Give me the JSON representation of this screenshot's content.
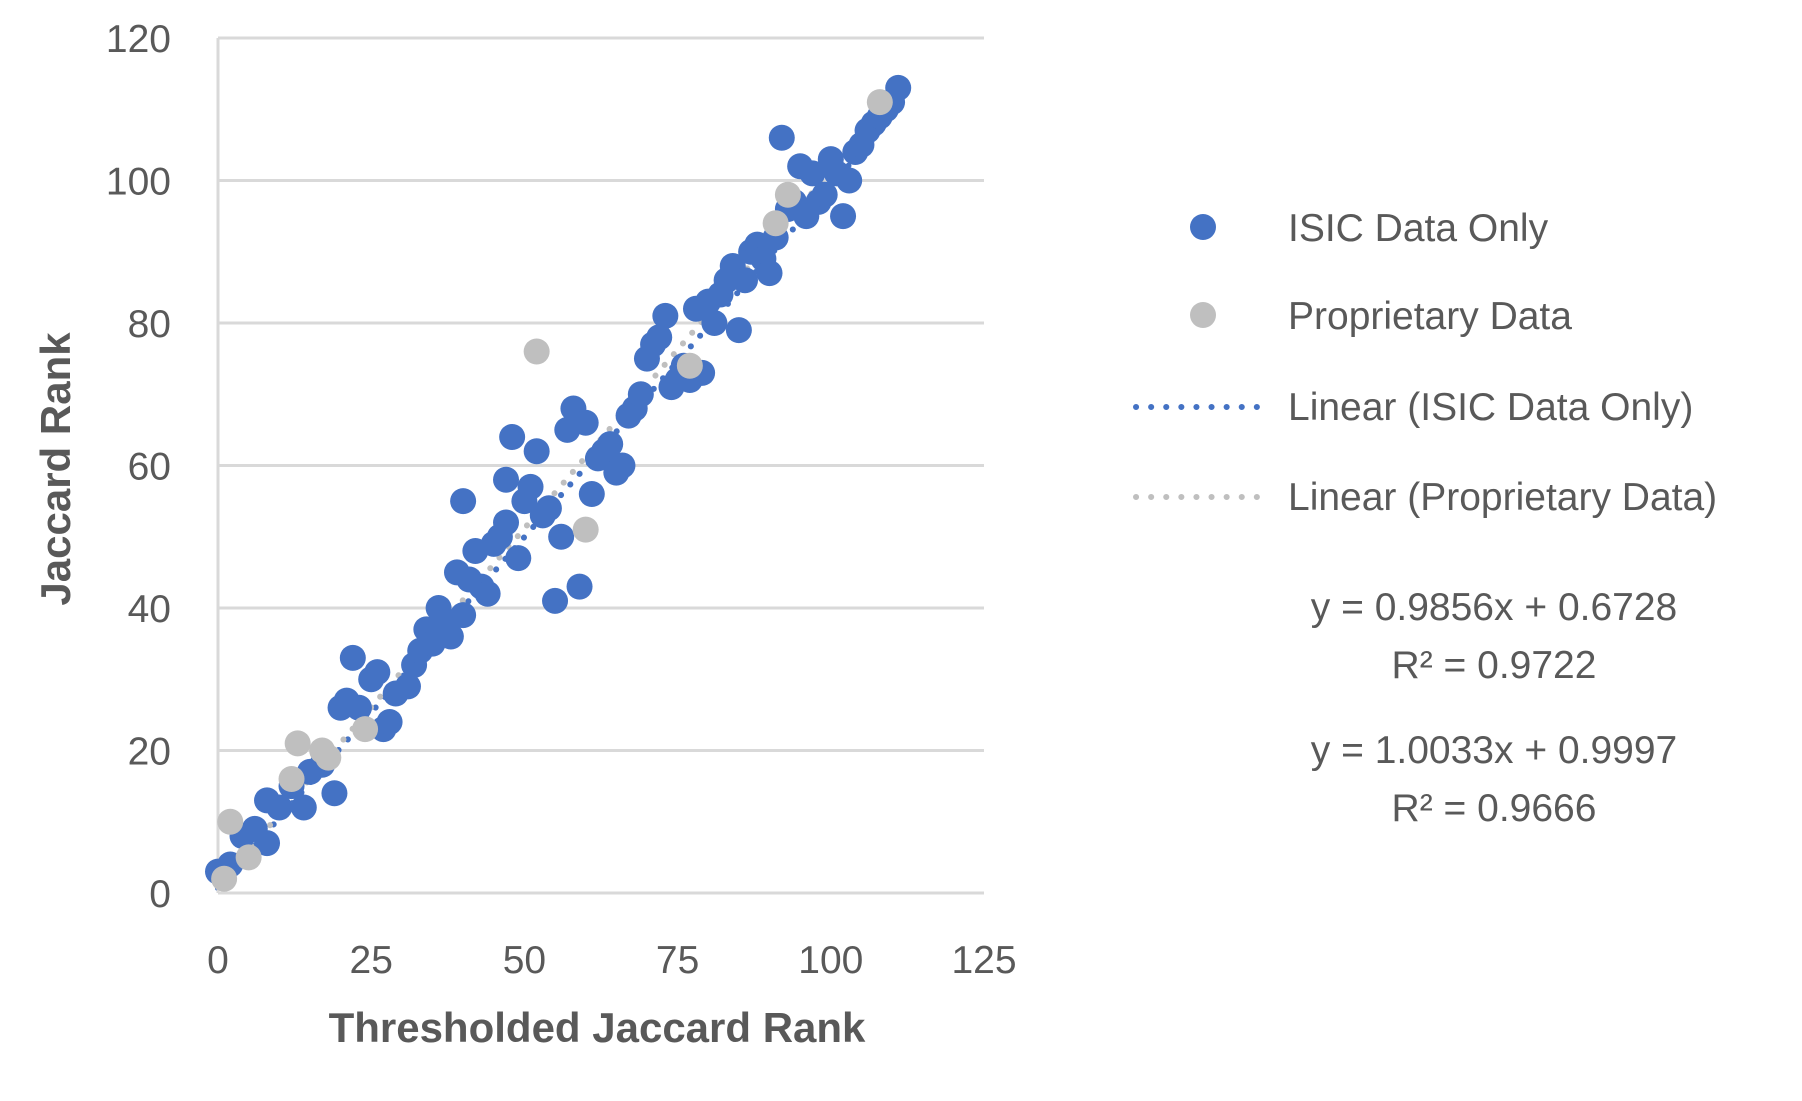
{
  "chart_data": {
    "type": "scatter",
    "xlabel": "Thresholded Jaccard Rank",
    "ylabel": "Jaccard Rank",
    "xlim": [
      0,
      125
    ],
    "ylim": [
      0,
      120
    ],
    "x_ticks": [
      "0",
      "25",
      "50",
      "75",
      "100",
      "125"
    ],
    "y_ticks": [
      "0",
      "20",
      "40",
      "60",
      "80",
      "100",
      "120"
    ],
    "grid": "horizontal",
    "legend_position": "right",
    "series": [
      {
        "name": "ISIC Data Only",
        "color": "#4472C4",
        "points": [
          [
            0,
            3
          ],
          [
            2,
            4
          ],
          [
            4,
            8
          ],
          [
            6,
            9
          ],
          [
            8,
            7
          ],
          [
            8,
            13
          ],
          [
            10,
            12
          ],
          [
            12,
            15
          ],
          [
            14,
            12
          ],
          [
            15,
            17
          ],
          [
            17,
            18
          ],
          [
            19,
            14
          ],
          [
            20,
            26
          ],
          [
            21,
            27
          ],
          [
            22,
            33
          ],
          [
            23,
            26
          ],
          [
            25,
            30
          ],
          [
            26,
            31
          ],
          [
            27,
            23
          ],
          [
            28,
            24
          ],
          [
            29,
            28
          ],
          [
            31,
            29
          ],
          [
            32,
            32
          ],
          [
            33,
            34
          ],
          [
            34,
            37
          ],
          [
            35,
            35
          ],
          [
            36,
            40
          ],
          [
            37,
            38
          ],
          [
            38,
            36
          ],
          [
            39,
            45
          ],
          [
            40,
            39
          ],
          [
            40,
            55
          ],
          [
            41,
            44
          ],
          [
            42,
            48
          ],
          [
            43,
            43
          ],
          [
            44,
            42
          ],
          [
            45,
            49
          ],
          [
            46,
            50
          ],
          [
            47,
            52
          ],
          [
            47,
            58
          ],
          [
            48,
            64
          ],
          [
            49,
            47
          ],
          [
            50,
            55
          ],
          [
            51,
            57
          ],
          [
            52,
            62
          ],
          [
            53,
            53
          ],
          [
            54,
            54
          ],
          [
            55,
            41
          ],
          [
            56,
            50
          ],
          [
            57,
            65
          ],
          [
            58,
            68
          ],
          [
            59,
            43
          ],
          [
            60,
            66
          ],
          [
            61,
            56
          ],
          [
            62,
            61
          ],
          [
            63,
            62
          ],
          [
            64,
            63
          ],
          [
            65,
            59
          ],
          [
            66,
            60
          ],
          [
            67,
            67
          ],
          [
            68,
            68
          ],
          [
            69,
            70
          ],
          [
            70,
            75
          ],
          [
            71,
            77
          ],
          [
            72,
            78
          ],
          [
            73,
            81
          ],
          [
            74,
            71
          ],
          [
            75,
            72
          ],
          [
            76,
            74
          ],
          [
            77,
            72
          ],
          [
            78,
            82
          ],
          [
            79,
            73
          ],
          [
            80,
            83
          ],
          [
            81,
            80
          ],
          [
            82,
            84
          ],
          [
            83,
            86
          ],
          [
            84,
            88
          ],
          [
            85,
            79
          ],
          [
            86,
            86
          ],
          [
            87,
            90
          ],
          [
            88,
            91
          ],
          [
            89,
            89
          ],
          [
            90,
            87
          ],
          [
            91,
            92
          ],
          [
            92,
            106
          ],
          [
            93,
            96
          ],
          [
            94,
            97
          ],
          [
            95,
            102
          ],
          [
            96,
            95
          ],
          [
            97,
            101
          ],
          [
            98,
            97
          ],
          [
            99,
            98
          ],
          [
            100,
            103
          ],
          [
            101,
            101
          ],
          [
            102,
            95
          ],
          [
            103,
            100
          ],
          [
            104,
            104
          ],
          [
            105,
            105
          ],
          [
            106,
            107
          ],
          [
            107,
            108
          ],
          [
            108,
            109
          ],
          [
            109,
            110
          ],
          [
            110,
            111
          ],
          [
            111,
            113
          ]
        ]
      },
      {
        "name": "Proprietary Data",
        "color": "#BFBFBF",
        "points": [
          [
            1,
            2
          ],
          [
            2,
            10
          ],
          [
            5,
            5
          ],
          [
            12,
            16
          ],
          [
            13,
            21
          ],
          [
            17,
            20
          ],
          [
            18,
            19
          ],
          [
            24,
            23
          ],
          [
            52,
            76
          ],
          [
            60,
            51
          ],
          [
            77,
            74
          ],
          [
            91,
            94
          ],
          [
            93,
            98
          ],
          [
            108,
            111
          ]
        ]
      }
    ],
    "trendlines": [
      {
        "name": "Linear (ISIC Data Only)",
        "color": "#4472C4",
        "slope": 0.9856,
        "intercept": 0.6728
      },
      {
        "name": "Linear (Proprietary Data)",
        "color": "#BFBFBF",
        "slope": 1.0033,
        "intercept": 0.9997
      }
    ],
    "annotations": [
      {
        "equation": "y = 0.9856x + 0.6728",
        "r2": "R² = 0.9722"
      },
      {
        "equation": "y = 1.0033x + 0.9997",
        "r2": "R² = 0.9666"
      }
    ]
  }
}
